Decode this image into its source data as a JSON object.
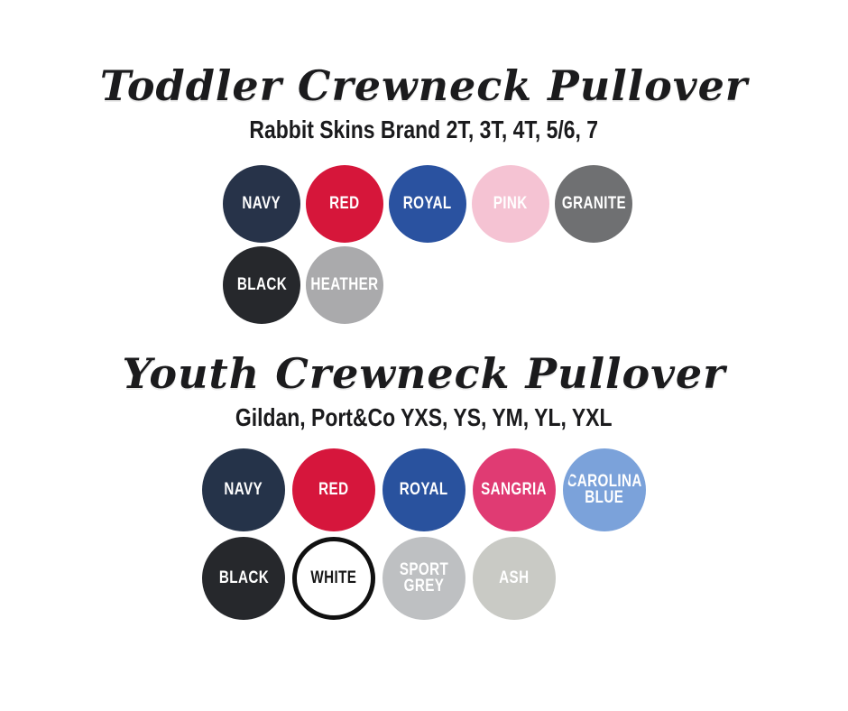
{
  "page": {
    "background": "#ffffff"
  },
  "sections": [
    {
      "title": "Toddler Crewneck Pullover",
      "subtitle": "Rabbit Skins Brand 2T, 3T, 4T, 5/6, 7",
      "rows": [
        {
          "swatches": [
            {
              "label": "NAVY",
              "color": "#273349",
              "text_color": "#ffffff"
            },
            {
              "label": "RED",
              "color": "#d6163a",
              "text_color": "#ffffff"
            },
            {
              "label": "ROYAL",
              "color": "#2a52a0",
              "text_color": "#ffffff"
            },
            {
              "label": "PINK",
              "color": "#f5c3d3",
              "text_color": "#ffffff"
            },
            {
              "label": "GRANITE",
              "color": "#6f7072",
              "text_color": "#ffffff"
            }
          ]
        },
        {
          "swatches": [
            {
              "label": "BLACK",
              "color": "#26282c",
              "text_color": "#ffffff"
            },
            {
              "label": "HEATHER",
              "color": "#aaaaac",
              "text_color": "#ffffff"
            }
          ]
        }
      ]
    },
    {
      "title": "Youth Crewneck Pullover",
      "subtitle": "Gildan, Port&Co YXS, YS, YM, YL, YXL",
      "rows": [
        {
          "swatches": [
            {
              "label": "NAVY",
              "color": "#253349",
              "text_color": "#ffffff"
            },
            {
              "label": "RED",
              "color": "#d6163c",
              "text_color": "#ffffff"
            },
            {
              "label": "ROYAL",
              "color": "#29529e",
              "text_color": "#ffffff"
            },
            {
              "label": "SANGRIA",
              "color": "#e03b73",
              "text_color": "#ffffff"
            },
            {
              "label": "CAROLINA BLUE",
              "color": "#7ba2da",
              "text_color": "#ffffff"
            }
          ]
        },
        {
          "swatches": [
            {
              "label": "BLACK",
              "color": "#26282c",
              "text_color": "#ffffff"
            },
            {
              "label": "WHITE",
              "color": "#ffffff",
              "text_color": "#161616",
              "border_color": "#111111"
            },
            {
              "label": "SPORT GREY",
              "color": "#bec0c2",
              "text_color": "#ffffff"
            },
            {
              "label": "ASH",
              "color": "#c9cac5",
              "text_color": "#ffffff"
            }
          ]
        }
      ]
    }
  ]
}
